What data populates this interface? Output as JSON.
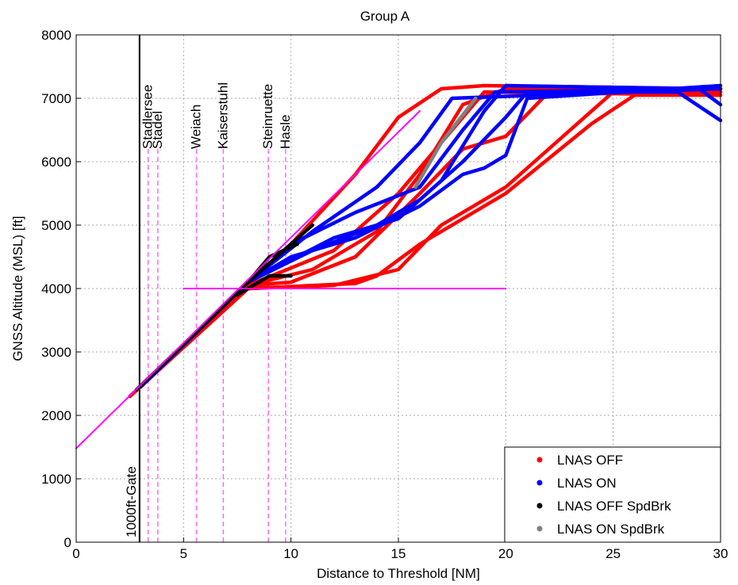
{
  "chart_data": {
    "type": "line",
    "title": "Group A",
    "xlabel": "Distance to Threshold [NM]",
    "ylabel": "GNSS Altitude (MSL) [ft]",
    "xlim": [
      0,
      30
    ],
    "ylim": [
      0,
      8000
    ],
    "xticks": [
      0,
      5,
      10,
      15,
      20,
      25,
      30
    ],
    "yticks": [
      0,
      1000,
      2000,
      3000,
      4000,
      5000,
      6000,
      7000,
      8000
    ],
    "grid": true,
    "legend": "lower right",
    "series": [
      {
        "name": "LNAS OFF",
        "color": "#ff0000",
        "tracks": [
          {
            "x": [
              2.5,
              8,
              13,
              14,
              16,
              20,
              24,
              26,
              30
            ],
            "values": [
              2300,
              4000,
              4080,
              4200,
              4700,
              5500,
              6600,
              7050,
              7050
            ]
          },
          {
            "x": [
              2.5,
              8,
              12,
              15,
              17,
              20,
              22,
              25,
              30
            ],
            "values": [
              2300,
              4000,
              4050,
              4300,
              5000,
              5600,
              6200,
              7100,
              7100
            ]
          },
          {
            "x": [
              3,
              8,
              10,
              13,
              15,
              17,
              19,
              30
            ],
            "values": [
              2450,
              4100,
              4700,
              5800,
              6700,
              7150,
              7200,
              7150
            ]
          },
          {
            "x": [
              3,
              8,
              11,
              14,
              16,
              18,
              20,
              30
            ],
            "values": [
              2450,
              4050,
              4300,
              4900,
              5800,
              6900,
              7150,
              7100
            ]
          },
          {
            "x": [
              3,
              8,
              10,
              13,
              16,
              18,
              20,
              22,
              30
            ],
            "values": [
              2450,
              4050,
              4100,
              4500,
              5500,
              6200,
              6400,
              7100,
              7100
            ]
          },
          {
            "x": [
              3,
              8,
              12,
              15,
              17,
              19,
              30
            ],
            "values": [
              2450,
              4050,
              4600,
              5500,
              6300,
              7100,
              7050
            ]
          }
        ]
      },
      {
        "name": "LNAS ON",
        "color": "#0000ff",
        "tracks": [
          {
            "x": [
              3,
              8,
              10,
              13,
              16,
              18,
              19.5,
              30
            ],
            "values": [
              2450,
              4100,
              4700,
              5200,
              5600,
              6500,
              7100,
              7150
            ]
          },
          {
            "x": [
              3,
              8,
              11,
              14,
              16,
              18,
              20,
              21,
              28,
              30
            ],
            "values": [
              2450,
              4100,
              4600,
              5000,
              5400,
              6000,
              6700,
              7100,
              7100,
              6650
            ]
          },
          {
            "x": [
              3,
              8,
              10,
              13,
              16,
              18,
              19,
              20,
              21,
              30
            ],
            "values": [
              2450,
              4100,
              4500,
              4800,
              5300,
              5800,
              5900,
              6100,
              7000,
              7200
            ]
          },
          {
            "x": [
              3,
              8,
              11,
              14,
              16,
              17.5,
              30
            ],
            "values": [
              2450,
              4100,
              4900,
              5600,
              6300,
              7000,
              7150
            ]
          },
          {
            "x": [
              8,
              12,
              15,
              17,
              19,
              20,
              29,
              30
            ],
            "values": [
              4100,
              4800,
              5100,
              5700,
              6800,
              7200,
              7150,
              6900
            ]
          }
        ]
      },
      {
        "name": "LNAS OFF SpdBrk",
        "color": "#000000",
        "tracks": [
          {
            "x": [
              2.8,
              8,
              9,
              11
            ],
            "values": [
              2400,
              4100,
              4400,
              5000
            ]
          },
          {
            "x": [
              7.5,
              9,
              10
            ],
            "values": [
              3900,
              4200,
              4200
            ]
          },
          {
            "x": [
              8,
              9,
              10.3
            ],
            "values": [
              4100,
              4500,
              4700
            ]
          }
        ]
      },
      {
        "name": "LNAS ON SpdBrk",
        "color": "#808080",
        "tracks": [
          {
            "x": [
              15.8,
              17,
              18.6
            ],
            "values": [
              5600,
              6300,
              7000
            ]
          }
        ]
      }
    ],
    "ref_lines": [
      {
        "x": [
          0,
          16
        ],
        "values": [
          1480,
          6800
        ],
        "color": "#ff00ff"
      },
      {
        "x": [
          5,
          20
        ],
        "values": [
          4000,
          4000
        ],
        "color": "#ff00ff"
      }
    ],
    "gate": {
      "label": "1000ft-Gate",
      "x": 2.95
    },
    "waypoints": [
      {
        "label": "Stadlersee",
        "x": 3.35
      },
      {
        "label": "Stadel",
        "x": 3.8
      },
      {
        "label": "Weiach",
        "x": 5.6
      },
      {
        "label": "Kaiserstuhl",
        "x": 6.85
      },
      {
        "label": "Steinruette",
        "x": 8.95
      },
      {
        "label": "Hasle",
        "x": 9.75
      }
    ]
  }
}
